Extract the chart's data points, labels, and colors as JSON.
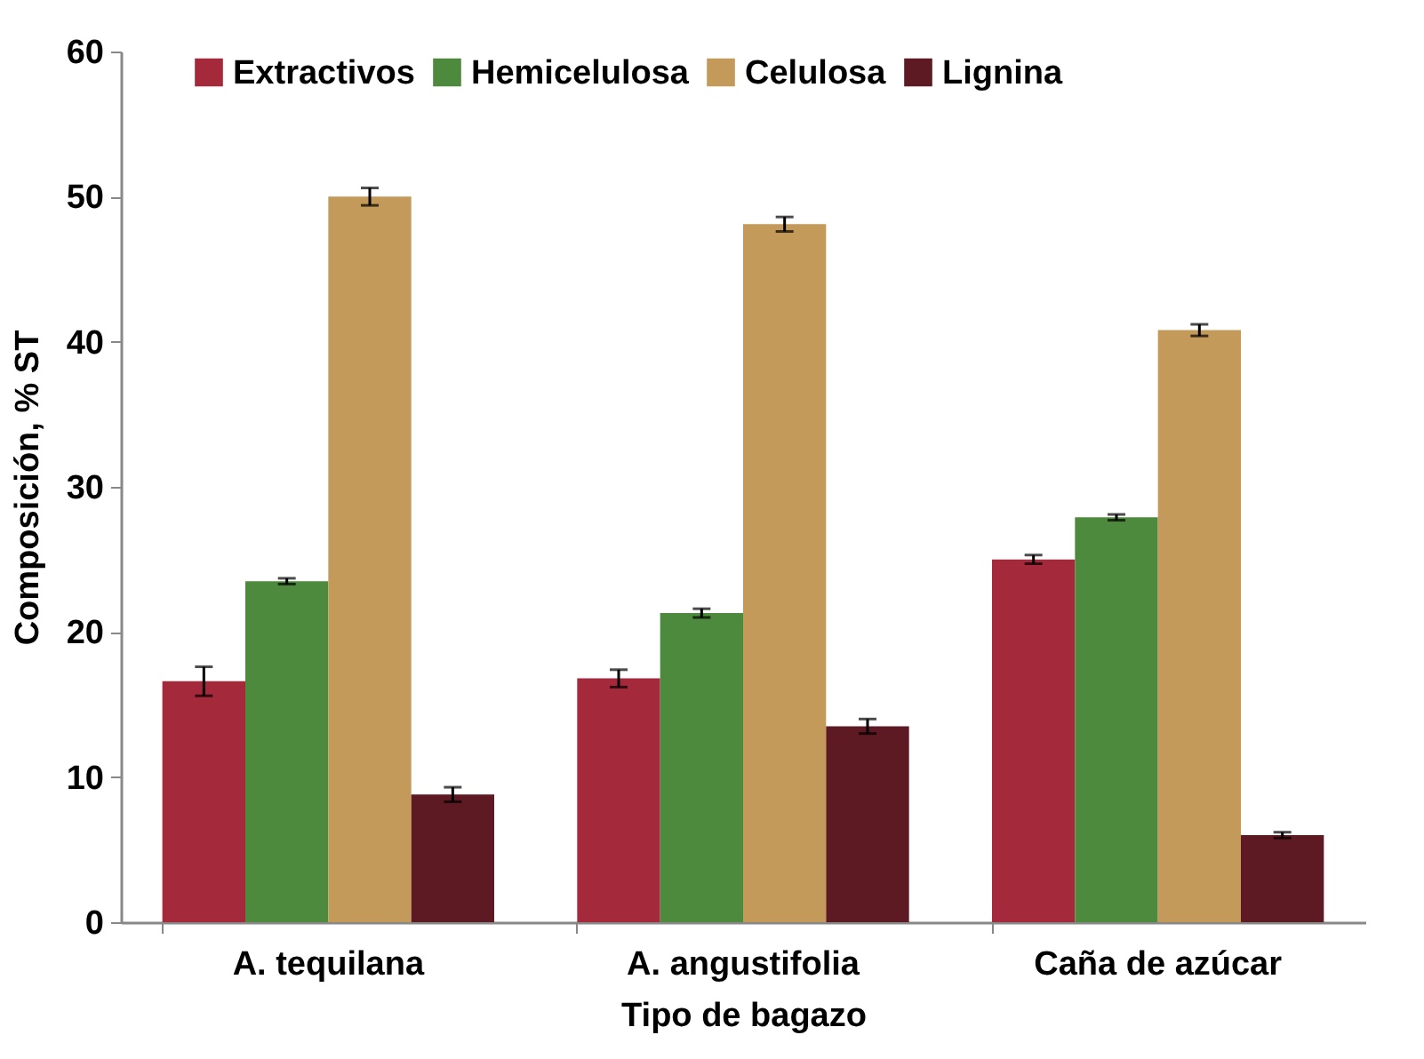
{
  "chart_data": {
    "type": "bar",
    "xlabel": "Tipo de bagazo",
    "ylabel": "Composición, % ST",
    "categories": [
      "A. tequilana",
      "A. angustifolia",
      "Caña de azúcar"
    ],
    "series": [
      {
        "name": "Extractivos",
        "color": "#a4293a",
        "values": [
          16.6,
          16.8,
          25.0
        ],
        "errors": [
          1.0,
          0.6,
          0.3
        ]
      },
      {
        "name": "Hemicelulosa",
        "color": "#4e8a3e",
        "values": [
          23.5,
          21.3,
          27.9
        ],
        "errors": [
          0.2,
          0.3,
          0.2
        ]
      },
      {
        "name": "Celulosa",
        "color": "#c49a5a",
        "values": [
          50.0,
          48.1,
          40.8
        ],
        "errors": [
          0.6,
          0.5,
          0.4
        ]
      },
      {
        "name": "Lignina",
        "color": "#5e1a22",
        "values": [
          8.8,
          13.5,
          6.0
        ],
        "errors": [
          0.5,
          0.5,
          0.2
        ]
      }
    ],
    "ylim": [
      0,
      60
    ],
    "yticks": [
      0,
      10,
      20,
      30,
      40,
      50,
      60
    ],
    "grid": false,
    "legend": "top"
  }
}
